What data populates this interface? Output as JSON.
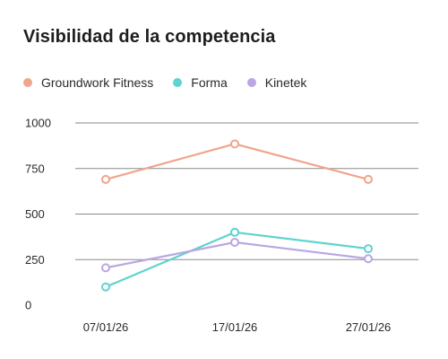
{
  "chart_data": {
    "type": "line",
    "title": "Visibilidad de la competencia",
    "xlabel": "",
    "ylabel": "",
    "categories": [
      "07/01/26",
      "17/01/26",
      "27/01/26"
    ],
    "ylim": [
      0,
      1000
    ],
    "y_ticks": [
      0,
      250,
      500,
      750,
      1000
    ],
    "grid": true,
    "legend_position": "top-left",
    "series": [
      {
        "name": "Groundwork Fitness",
        "color": "#f0a58c",
        "values": [
          690,
          885,
          690
        ]
      },
      {
        "name": "Forma",
        "color": "#5fd3cf",
        "values": [
          100,
          400,
          310
        ]
      },
      {
        "name": "Kinetek",
        "color": "#b9a6e3",
        "values": [
          205,
          345,
          255
        ]
      }
    ]
  }
}
